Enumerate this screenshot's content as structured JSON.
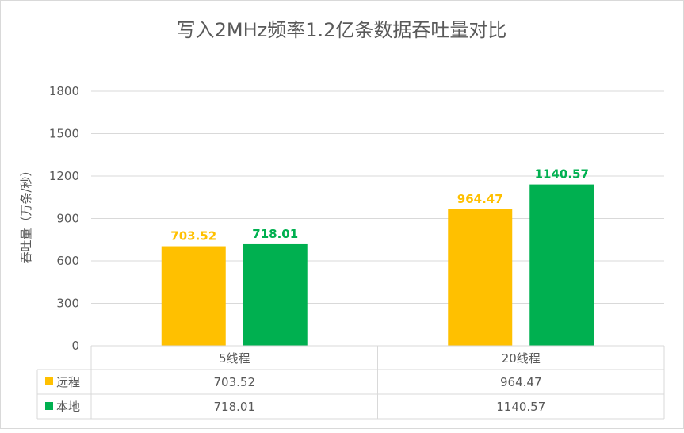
{
  "chart_data": {
    "type": "bar",
    "title": "写入2MHz频率1.2亿条数据吞吐量对比",
    "ylabel": "吞吐量（万条/秒）",
    "xlabel": "",
    "ylim": [
      0,
      1800
    ],
    "yticks": [
      0,
      300,
      600,
      900,
      1200,
      1500,
      1800
    ],
    "grid": true,
    "legend": "data-table",
    "categories": [
      "5线程",
      "20线程"
    ],
    "series": [
      {
        "name": "远程",
        "color": "#FFC000",
        "values": [
          703.52,
          964.47
        ]
      },
      {
        "name": "本地",
        "color": "#00B050",
        "values": [
          718.01,
          1140.57
        ]
      }
    ],
    "data_labels": true,
    "data_table": true
  }
}
